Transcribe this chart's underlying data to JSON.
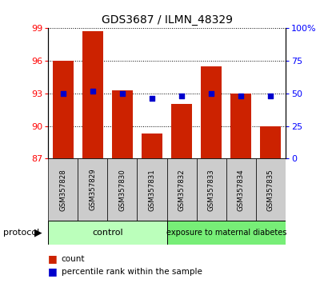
{
  "title": "GDS3687 / ILMN_48329",
  "samples": [
    "GSM357828",
    "GSM357829",
    "GSM357830",
    "GSM357831",
    "GSM357832",
    "GSM357833",
    "GSM357834",
    "GSM357835"
  ],
  "counts": [
    96.0,
    98.7,
    93.3,
    89.3,
    92.0,
    95.5,
    93.0,
    90.0
  ],
  "percentile_ranks": [
    50,
    52,
    50,
    46,
    48,
    50,
    48,
    48
  ],
  "ylim_left": [
    87,
    99
  ],
  "yticks_left": [
    87,
    90,
    93,
    96,
    99
  ],
  "ylim_right": [
    0,
    100
  ],
  "yticks_right": [
    0,
    25,
    50,
    75,
    100
  ],
  "ytick_labels_right": [
    "0",
    "25",
    "50",
    "75",
    "100%"
  ],
  "bar_color": "#cc2200",
  "dot_color": "#0000cc",
  "grid_color": "#000000",
  "control_color": "#bbffbb",
  "diabetes_color": "#77ee77",
  "label_bg_color": "#cccccc",
  "n_control": 4,
  "n_diabetes": 4,
  "control_label": "control",
  "diabetes_label": "exposure to maternal diabetes",
  "protocol_label": "protocol",
  "legend_count": "count",
  "legend_pct": "percentile rank within the sample",
  "bar_width": 0.7
}
